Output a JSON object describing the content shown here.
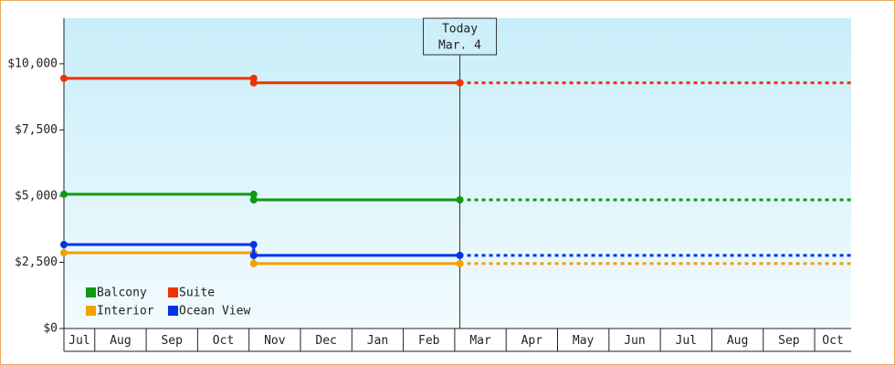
{
  "chart_data": {
    "type": "line",
    "step": true,
    "x": [
      0.4,
      4.09,
      4.09,
      8.1
    ],
    "series": [
      {
        "name": "Balcony",
        "color": "#119911",
        "values": [
          5070,
          5070,
          4860,
          4860
        ]
      },
      {
        "name": "Suite",
        "color": "#ee3300",
        "values": [
          9450,
          9450,
          9280,
          9280
        ]
      },
      {
        "name": "Interior",
        "color": "#f2a000",
        "values": [
          2860,
          2860,
          2450,
          2450
        ]
      },
      {
        "name": "Ocean View",
        "color": "#0033ee",
        "values": [
          3170,
          3170,
          2760,
          2760
        ]
      }
    ],
    "xlim": [
      0.4,
      15.71
    ],
    "xticks": [
      {
        "value": 0,
        "label": "Jul"
      },
      {
        "value": 1,
        "label": "Aug"
      },
      {
        "value": 2,
        "label": "Sep"
      },
      {
        "value": 3,
        "label": "Oct"
      },
      {
        "value": 4,
        "label": "Nov"
      },
      {
        "value": 5,
        "label": "Dec"
      },
      {
        "value": 6,
        "label": "Jan"
      },
      {
        "value": 7,
        "label": "Feb"
      },
      {
        "value": 8,
        "label": "Mar"
      },
      {
        "value": 9,
        "label": "Apr"
      },
      {
        "value": 10,
        "label": "May"
      },
      {
        "value": 11,
        "label": "Jun"
      },
      {
        "value": 12,
        "label": "Jul"
      },
      {
        "value": 13,
        "label": "Aug"
      },
      {
        "value": 14,
        "label": "Sep"
      },
      {
        "value": 15,
        "label": "Oct"
      }
    ],
    "ylim": [
      0,
      11720
    ],
    "yticks": [
      {
        "value": 0,
        "label": "$0"
      },
      {
        "value": 2500,
        "label": "$2,500"
      },
      {
        "value": 5000,
        "label": "$5,000"
      },
      {
        "value": 7500,
        "label": "$7,500"
      },
      {
        "value": 10000,
        "label": "$10,000"
      }
    ],
    "today": {
      "x": 8.1,
      "lines": [
        "Today",
        "Mar. 4"
      ]
    },
    "legend": "bottom-left"
  }
}
